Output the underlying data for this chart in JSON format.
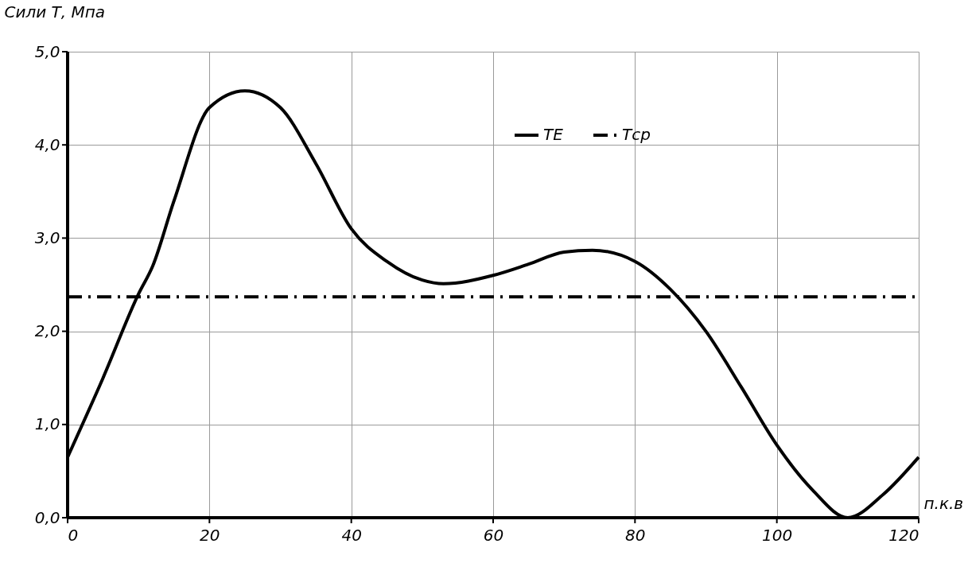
{
  "chart_data": {
    "type": "line",
    "xlabel": "п.к.в",
    "ylabel": "Сили Т, Мпа",
    "xlim": [
      0,
      120
    ],
    "xticks": [
      0,
      20,
      40,
      60,
      80,
      100,
      120
    ],
    "ylim": [
      0,
      5
    ],
    "yticks": [
      {
        "value": 0,
        "label": "0,0"
      },
      {
        "value": 1,
        "label": "1,0"
      },
      {
        "value": 2,
        "label": "2,0"
      },
      {
        "value": 3,
        "label": "3,0"
      },
      {
        "value": 4,
        "label": "4,0"
      },
      {
        "value": 5,
        "label": "5,0"
      }
    ],
    "grid": true,
    "legend": "top right",
    "marker": "none",
    "series": [
      {
        "name": "ТЕ",
        "color": "#000000",
        "line_style": "solid",
        "x": [
          0,
          5,
          10,
          12,
          15,
          20,
          25,
          30,
          35,
          40,
          45,
          50,
          53,
          60,
          65,
          70,
          74,
          80,
          85,
          90,
          95,
          100,
          105,
          110,
          115,
          120
        ],
        "values": [
          0.65,
          1.5,
          2.4,
          2.7,
          3.4,
          4.4,
          4.58,
          4.4,
          3.8,
          3.1,
          2.75,
          2.55,
          2.51,
          2.6,
          2.72,
          2.85,
          2.87,
          2.75,
          2.45,
          2.0,
          1.4,
          0.78,
          0.3,
          0.0,
          0.25,
          0.65
        ]
      },
      {
        "name": "Тср",
        "color": "#000000",
        "line_style": "dashed",
        "x": [
          0,
          120
        ],
        "values": [
          2.37,
          2.37
        ]
      }
    ]
  }
}
